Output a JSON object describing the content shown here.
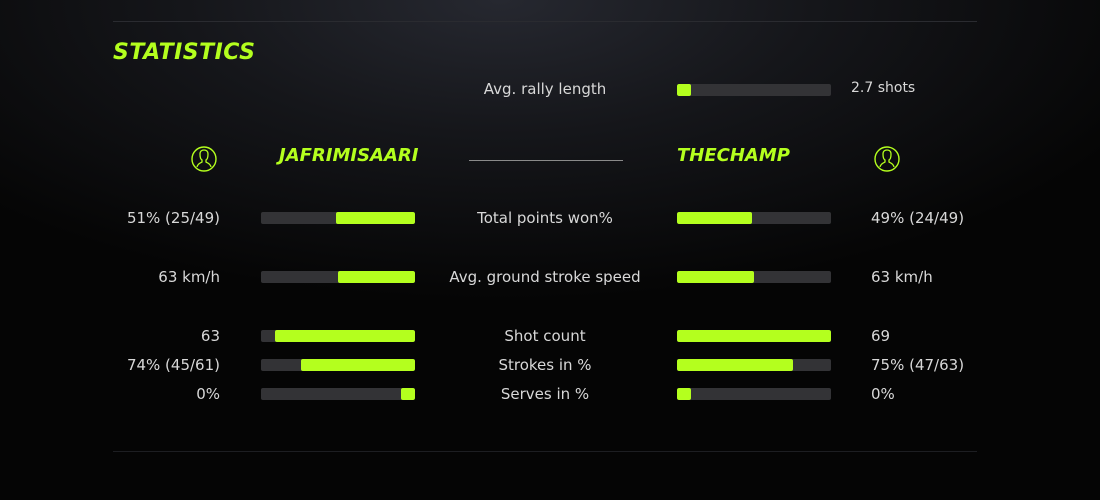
{
  "colors": {
    "accent": "#b4ff1e",
    "bar_track": "#333336"
  },
  "title": "STATISTICS",
  "rally": {
    "label": "Avg. rally length",
    "value": "2.7 shots",
    "fill_pct": 9
  },
  "players": {
    "left": {
      "name": "JAFRIMISAARI",
      "icon": "user-icon"
    },
    "right": {
      "name": "THECHAMP",
      "icon": "user-icon"
    }
  },
  "stats": [
    {
      "label": "Total points won%",
      "left": "51% (25/49)",
      "right": "49% (24/49)",
      "left_pct": 51,
      "right_pct": 49
    },
    {
      "label": "Avg. ground stroke speed",
      "left": "63 km/h",
      "right": "63 km/h",
      "left_pct": 50,
      "right_pct": 50
    },
    {
      "label": "Shot count",
      "left": "63",
      "right": "69",
      "left_pct": 91,
      "right_pct": 100
    },
    {
      "label": "Strokes in %",
      "left": "74% (45/61)",
      "right": "75% (47/63)",
      "left_pct": 74,
      "right_pct": 75
    },
    {
      "label": "Serves in %",
      "left": "0%",
      "right": "0%",
      "left_pct": 9,
      "right_pct": 9
    }
  ]
}
